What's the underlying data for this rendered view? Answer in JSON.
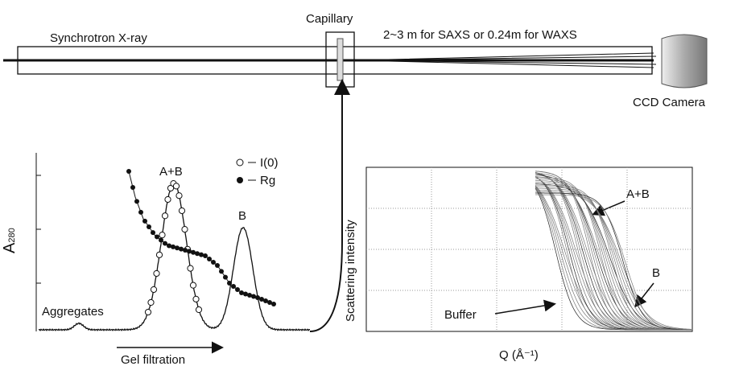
{
  "top": {
    "source": "Synchrotron X-ray",
    "capillary": "Capillary",
    "distance": "2~3 m for SAXS or 0.24m for WAXS",
    "detector": "CCD Camera"
  },
  "elution": {
    "y_label": {
      "main": "A",
      "sub": "280"
    },
    "peak_ab": "A+B",
    "peak_b": "B",
    "aggregates": "Aggregates",
    "x_label": "Gel filtration",
    "legend": {
      "open": "I(0)",
      "filled": "Rg"
    }
  },
  "scattering": {
    "y_label": "Scattering intensity",
    "x_label": "Q (Å⁻¹)",
    "label_ab": "A+B",
    "label_b": "B",
    "label_buffer": "Buffer"
  }
}
